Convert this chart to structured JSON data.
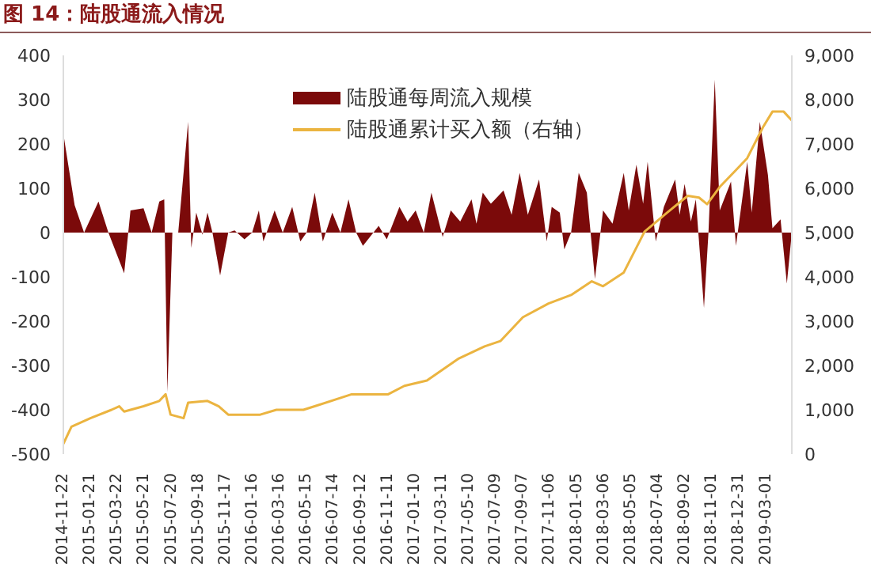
{
  "chart_data": {
    "type": "area",
    "title": "图 14：陆股通流入情况",
    "series": [
      {
        "name": "陆股通每周流入规模",
        "color": "#7b0a0a",
        "x": [
          "2014-11-22",
          "2014-12-17",
          "2015-01-07",
          "2015-02-08",
          "2015-03-02",
          "2015-04-06",
          "2015-04-20",
          "2015-05-19",
          "2015-06-06",
          "2015-06-23",
          "2015-07-04",
          "2015-07-11",
          "2015-07-22",
          "2015-08-04",
          "2015-08-26",
          "2015-09-02",
          "2015-09-13",
          "2015-09-27",
          "2015-10-08",
          "2015-10-19",
          "2015-11-05",
          "2015-11-23",
          "2015-12-07",
          "2015-12-29",
          "2016-01-15",
          "2016-01-30",
          "2016-02-09",
          "2016-03-05",
          "2016-03-23",
          "2016-04-13",
          "2016-05-01",
          "2016-05-15",
          "2016-06-02",
          "2016-06-20",
          "2016-07-11",
          "2016-07-29",
          "2016-08-16",
          "2016-09-02",
          "2016-09-17",
          "2016-10-22",
          "2016-11-09",
          "2016-12-07",
          "2016-12-25",
          "2017-01-12",
          "2017-01-30",
          "2017-02-16",
          "2017-03-13",
          "2017-03-31",
          "2017-04-21",
          "2017-05-16",
          "2017-05-27",
          "2017-06-10",
          "2017-06-28",
          "2017-07-26",
          "2017-08-13",
          "2017-08-31",
          "2017-09-18",
          "2017-10-13",
          "2017-10-30",
          "2017-11-10",
          "2017-11-28",
          "2017-12-08",
          "2017-12-23",
          "2018-01-09",
          "2018-01-27",
          "2018-02-14",
          "2018-03-04",
          "2018-03-25",
          "2018-04-19",
          "2018-04-30",
          "2018-05-17",
          "2018-06-01",
          "2018-06-11",
          "2018-06-29",
          "2018-07-17",
          "2018-08-11",
          "2018-08-21",
          "2018-09-01",
          "2018-09-15",
          "2018-09-26",
          "2018-10-14",
          "2018-10-24",
          "2018-11-07",
          "2018-11-18",
          "2018-12-13",
          "2018-12-24",
          "2019-01-18",
          "2019-01-28",
          "2019-02-15",
          "2019-03-05",
          "2019-03-15",
          "2019-04-02",
          "2019-04-16",
          "2019-04-27"
        ],
        "values": [
          223,
          62,
          0,
          70,
          0,
          -92,
          50,
          55,
          0,
          70,
          75,
          -360,
          0,
          0,
          250,
          -35,
          45,
          -5,
          45,
          0,
          -97,
          0,
          5,
          -15,
          0,
          50,
          -20,
          50,
          0,
          58,
          -20,
          0,
          90,
          -20,
          45,
          0,
          75,
          0,
          -30,
          15,
          -15,
          58,
          25,
          50,
          0,
          90,
          -10,
          50,
          25,
          75,
          20,
          90,
          65,
          95,
          40,
          135,
          40,
          120,
          -20,
          58,
          45,
          -38,
          0,
          135,
          90,
          -105,
          50,
          20,
          135,
          50,
          153,
          65,
          160,
          -20,
          58,
          120,
          40,
          110,
          25,
          75,
          -170,
          0,
          345,
          50,
          115,
          -30,
          160,
          45,
          250,
          130,
          10,
          30,
          -115,
          0
        ]
      },
      {
        "name": "陆股通累计买入额（右轴）",
        "type": "line",
        "axis": "y2",
        "color": "#ebb440",
        "x": [
          "2014-11-22",
          "2014-12-10",
          "2015-01-21",
          "2015-03-09",
          "2015-03-26",
          "2015-04-06",
          "2015-05-19",
          "2015-06-23",
          "2015-07-07",
          "2015-07-18",
          "2015-08-16",
          "2015-08-26",
          "2015-10-08",
          "2015-11-02",
          "2015-11-23",
          "2016-02-02",
          "2016-03-09",
          "2016-05-08",
          "2016-06-02",
          "2016-08-23",
          "2016-11-12",
          "2016-12-18",
          "2017-02-06",
          "2017-04-18",
          "2017-06-14",
          "2017-07-19",
          "2017-09-07",
          "2017-11-03",
          "2017-12-23",
          "2018-02-07",
          "2018-03-04",
          "2018-04-19",
          "2018-06-04",
          "2018-07-24",
          "2018-09-08",
          "2018-10-03",
          "2018-10-21",
          "2018-11-18",
          "2018-12-24",
          "2019-01-18",
          "2019-02-22",
          "2019-03-15",
          "2019-04-09",
          "2019-04-27"
        ],
        "values": [
          230,
          620,
          810,
          1000,
          1080,
          960,
          1080,
          1200,
          1350,
          890,
          810,
          1160,
          1200,
          1080,
          890,
          890,
          1000,
          1000,
          1080,
          1350,
          1350,
          1540,
          1660,
          2160,
          2430,
          2550,
          3090,
          3400,
          3590,
          3900,
          3790,
          4100,
          5020,
          5450,
          5830,
          5790,
          5640,
          6030,
          6410,
          6680,
          7380,
          7730,
          7730,
          7530
        ]
      }
    ],
    "xlim": [
      "2014-11-22",
      "2019-04-27"
    ],
    "xticks": [
      "2014-11-22",
      "2015-01-21",
      "2015-03-22",
      "2015-05-21",
      "2015-07-20",
      "2015-09-18",
      "2015-11-17",
      "2016-01-16",
      "2016-03-16",
      "2016-05-15",
      "2016-07-14",
      "2016-09-12",
      "2016-11-11",
      "2017-01-10",
      "2017-03-11",
      "2017-05-10",
      "2017-07-09",
      "2017-09-07",
      "2017-11-06",
      "2018-01-05",
      "2018-03-06",
      "2018-05-05",
      "2018-07-04",
      "2018-09-02",
      "2018-11-01",
      "2018-12-31",
      "2019-03-01"
    ],
    "ylim": [
      -500,
      400
    ],
    "yticks": [
      -500,
      -400,
      -300,
      -200,
      -100,
      0,
      100,
      200,
      300,
      400
    ],
    "y2lim": [
      0,
      9000
    ],
    "y2ticks": [
      0,
      {
        "value": 1000,
        "label": "1,000"
      },
      {
        "value": 2000,
        "label": "2,000"
      },
      {
        "value": 3000,
        "label": "3,000"
      },
      {
        "value": 4000,
        "label": "4,000"
      },
      {
        "value": 5000,
        "label": "5,000"
      },
      {
        "value": 6000,
        "label": "6,000"
      },
      {
        "value": 7000,
        "label": "7,000"
      },
      {
        "value": 8000,
        "label": "8,000"
      },
      {
        "value": 9000,
        "label": "9,000"
      }
    ],
    "legend": "top"
  }
}
